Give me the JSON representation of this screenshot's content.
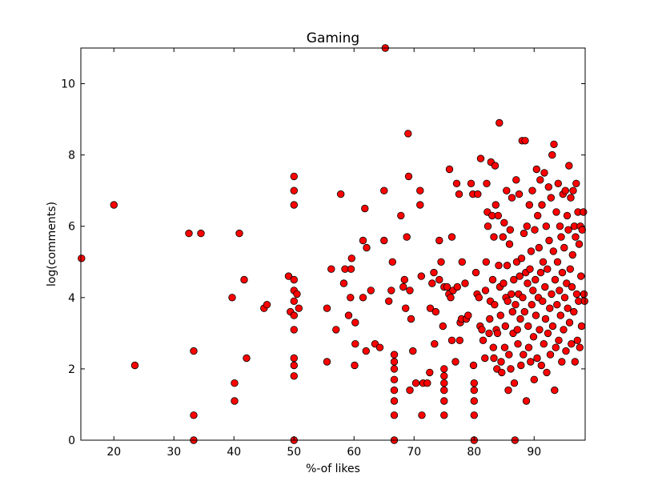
{
  "chart_data": {
    "type": "scatter",
    "title": "Gaming",
    "xlabel": "%-of likes",
    "ylabel": "log(comments)",
    "xlim": [
      14.5,
      98.5
    ],
    "ylim": [
      0,
      11
    ],
    "x_ticks": [
      20,
      30,
      40,
      50,
      60,
      70,
      80,
      90
    ],
    "y_ticks": [
      0,
      2,
      4,
      6,
      8,
      10
    ],
    "grid": false,
    "legend": "none",
    "marker_color": "#ff0000",
    "marker_edge_color": "#000000",
    "points": [
      [
        14.6,
        5.1
      ],
      [
        20,
        6.6
      ],
      [
        23.5,
        2.1
      ],
      [
        32.5,
        5.8
      ],
      [
        33.3,
        2.5
      ],
      [
        33.3,
        0.7
      ],
      [
        33.3,
        0.0
      ],
      [
        34.5,
        5.8
      ],
      [
        39.7,
        4.0
      ],
      [
        40.1,
        1.6
      ],
      [
        40.1,
        1.1
      ],
      [
        40.9,
        5.8
      ],
      [
        41.7,
        4.5
      ],
      [
        42.1,
        2.3
      ],
      [
        45,
        3.7
      ],
      [
        45.5,
        3.8
      ],
      [
        49.1,
        4.6
      ],
      [
        49.4,
        3.6
      ],
      [
        50,
        7.4
      ],
      [
        50,
        7.0
      ],
      [
        50,
        6.6
      ],
      [
        50,
        4.5
      ],
      [
        50,
        4.2
      ],
      [
        50,
        3.9
      ],
      [
        50,
        3.5
      ],
      [
        50,
        3.1
      ],
      [
        50,
        2.3
      ],
      [
        50,
        2.1
      ],
      [
        50,
        1.8
      ],
      [
        50,
        0.0
      ],
      [
        50.5,
        4.1
      ],
      [
        50.8,
        3.7
      ],
      [
        55.5,
        3.7
      ],
      [
        55.5,
        2.2
      ],
      [
        56.2,
        4.8
      ],
      [
        57,
        3.1
      ],
      [
        57.8,
        6.9
      ],
      [
        58.3,
        4.4
      ],
      [
        58.5,
        4.8
      ],
      [
        59.1,
        3.5
      ],
      [
        59.5,
        4.8
      ],
      [
        59.6,
        5.1
      ],
      [
        59.4,
        4.0
      ],
      [
        60.2,
        3.3
      ],
      [
        60.2,
        2.7
      ],
      [
        60.1,
        2.1
      ],
      [
        61.5,
        5.6
      ],
      [
        61.5,
        4.0
      ],
      [
        61.8,
        6.5
      ],
      [
        62,
        2.5
      ],
      [
        62.1,
        5.4
      ],
      [
        62.8,
        4.2
      ],
      [
        63.5,
        2.7
      ],
      [
        64.3,
        2.6
      ],
      [
        65,
        5.6
      ],
      [
        65,
        7.0
      ],
      [
        65.2,
        11.0
      ],
      [
        65.8,
        3.9
      ],
      [
        66.2,
        4.2
      ],
      [
        66.4,
        5.0
      ],
      [
        66.7,
        2.4
      ],
      [
        66.7,
        2.2
      ],
      [
        66.7,
        2.0
      ],
      [
        66.7,
        1.7
      ],
      [
        66.7,
        1.4
      ],
      [
        66.7,
        1.1
      ],
      [
        66.7,
        0.7
      ],
      [
        66.7,
        0.0
      ],
      [
        67.8,
        6.3
      ],
      [
        68.4,
        4.5
      ],
      [
        68.2,
        4.3
      ],
      [
        68.6,
        3.7
      ],
      [
        68.8,
        5.7
      ],
      [
        69.1,
        7.4
      ],
      [
        69,
        8.6
      ],
      [
        69.3,
        1.4
      ],
      [
        69.3,
        4.2
      ],
      [
        69.5,
        3.4
      ],
      [
        69.8,
        2.5
      ],
      [
        70.3,
        1.6
      ],
      [
        71,
        7.0
      ],
      [
        71,
        6.6
      ],
      [
        71.2,
        4.6
      ],
      [
        71.3,
        0.7
      ],
      [
        71.5,
        1.6
      ],
      [
        72.2,
        1.6
      ],
      [
        72.6,
        1.9
      ],
      [
        72.7,
        3.7
      ],
      [
        73,
        4.4
      ],
      [
        73.3,
        4.7
      ],
      [
        73.4,
        2.7
      ],
      [
        73.6,
        3.6
      ],
      [
        74.2,
        5.6
      ],
      [
        74.2,
        4.5
      ],
      [
        74.5,
        5.0
      ],
      [
        74.8,
        3.2
      ],
      [
        75,
        4.3
      ],
      [
        75,
        2.0
      ],
      [
        75,
        1.8
      ],
      [
        75,
        1.6
      ],
      [
        75,
        1.4
      ],
      [
        75,
        1.1
      ],
      [
        75,
        0.7
      ],
      [
        75.5,
        4.3
      ],
      [
        75.8,
        4.1
      ],
      [
        75.9,
        7.6
      ],
      [
        76.1,
        4.0
      ],
      [
        76.3,
        2.8
      ],
      [
        76.3,
        5.7
      ],
      [
        76.5,
        4.2
      ],
      [
        76.9,
        2.2
      ],
      [
        77.1,
        7.2
      ],
      [
        77.2,
        4.3
      ],
      [
        77.5,
        6.9
      ],
      [
        77.6,
        2.8
      ],
      [
        77.7,
        3.3
      ],
      [
        77.9,
        3.4
      ],
      [
        78,
        5.0
      ],
      [
        78.5,
        4.4
      ],
      [
        78.7,
        3.4
      ],
      [
        79,
        3.5
      ],
      [
        79.5,
        7.2
      ],
      [
        79.8,
        6.9
      ],
      [
        79.9,
        2.1
      ],
      [
        80,
        1.6
      ],
      [
        80,
        1.4
      ],
      [
        80,
        1.1
      ],
      [
        80,
        0.7
      ],
      [
        80,
        0.0
      ],
      [
        80.3,
        4.7
      ],
      [
        80.5,
        4.1
      ],
      [
        80.6,
        6.9
      ],
      [
        80.8,
        4.0
      ],
      [
        81,
        3.2
      ],
      [
        81.1,
        7.9
      ],
      [
        81.3,
        3.1
      ],
      [
        81.5,
        2.8
      ],
      [
        81.8,
        2.3
      ],
      [
        81.9,
        4.2
      ],
      [
        82,
        5.0
      ],
      [
        82.1,
        7.2
      ],
      [
        82.2,
        6.4
      ],
      [
        82.3,
        6.0
      ],
      [
        82.5,
        3.0
      ],
      [
        82.6,
        3.4
      ],
      [
        82.7,
        3.9
      ],
      [
        82.8,
        7.8
      ],
      [
        83,
        6.3
      ],
      [
        83.1,
        4.5
      ],
      [
        83.2,
        2.6
      ],
      [
        83.3,
        2.3
      ],
      [
        83.3,
        5.7
      ],
      [
        83.4,
        3.8
      ],
      [
        83.5,
        7.7
      ],
      [
        83.6,
        6.6
      ],
      [
        83.7,
        3.1
      ],
      [
        83.8,
        2.0
      ],
      [
        83.9,
        3.0
      ],
      [
        84,
        6.3
      ],
      [
        84.1,
        4.9
      ],
      [
        84.2,
        8.9
      ],
      [
        84.3,
        4.3
      ],
      [
        84.4,
        3.5
      ],
      [
        84.5,
        2.2
      ],
      [
        84.6,
        1.9
      ],
      [
        84.8,
        5.7
      ],
      [
        84.9,
        4.4
      ],
      [
        85,
        6.1
      ],
      [
        85.1,
        2.6
      ],
      [
        85.2,
        3.2
      ],
      [
        85.3,
        4.0
      ],
      [
        85.4,
        7.0
      ],
      [
        85.5,
        4.9
      ],
      [
        85.6,
        3.9
      ],
      [
        85.7,
        1.4
      ],
      [
        85.8,
        2.4
      ],
      [
        85.9,
        5.5
      ],
      [
        86,
        5.9
      ],
      [
        86.1,
        2.0
      ],
      [
        86.2,
        4.1
      ],
      [
        86.3,
        6.8
      ],
      [
        86.4,
        3.6
      ],
      [
        86.5,
        3.0
      ],
      [
        86.6,
        4.5
      ],
      [
        86.7,
        1.6
      ],
      [
        86.8,
        0.0
      ],
      [
        86.9,
        3.8
      ],
      [
        87,
        7.3
      ],
      [
        87.1,
        5.0
      ],
      [
        87.2,
        3.1
      ],
      [
        87.3,
        2.7
      ],
      [
        87.4,
        4.1
      ],
      [
        87.5,
        6.9
      ],
      [
        87.6,
        4.6
      ],
      [
        87.7,
        3.4
      ],
      [
        87.8,
        2.1
      ],
      [
        87.9,
        5.1
      ],
      [
        88,
        8.4
      ],
      [
        88.1,
        4.0
      ],
      [
        88.2,
        2.4
      ],
      [
        88.3,
        5.8
      ],
      [
        88.4,
        3.6
      ],
      [
        88.5,
        8.4
      ],
      [
        88.6,
        4.7
      ],
      [
        88.7,
        1.1
      ],
      [
        88.8,
        6.0
      ],
      [
        88.9,
        4.4
      ],
      [
        89,
        3.2
      ],
      [
        89.1,
        2.6
      ],
      [
        89.2,
        6.6
      ],
      [
        89.3,
        4.8
      ],
      [
        89.4,
        2.2
      ],
      [
        89.5,
        5.3
      ],
      [
        89.6,
        3.8
      ],
      [
        89.7,
        7.0
      ],
      [
        89.8,
        4.2
      ],
      [
        89.9,
        2.9
      ],
      [
        90,
        1.7
      ],
      [
        90.1,
        5.9
      ],
      [
        90.2,
        4.5
      ],
      [
        90.3,
        3.5
      ],
      [
        90.4,
        7.6
      ],
      [
        90.5,
        2.3
      ],
      [
        90.6,
        6.3
      ],
      [
        90.7,
        4.0
      ],
      [
        90.8,
        5.4
      ],
      [
        90.9,
        3.1
      ],
      [
        91,
        7.3
      ],
      [
        91.1,
        4.7
      ],
      [
        91.2,
        2.1
      ],
      [
        91.3,
        6.6
      ],
      [
        91.4,
        3.9
      ],
      [
        91.5,
        5.0
      ],
      [
        91.6,
        2.7
      ],
      [
        91.7,
        7.5
      ],
      [
        91.8,
        4.3
      ],
      [
        91.9,
        3.4
      ],
      [
        92,
        6.0
      ],
      [
        92.1,
        1.9
      ],
      [
        92.2,
        4.8
      ],
      [
        92.3,
        3.0
      ],
      [
        92.4,
        7.1
      ],
      [
        92.5,
        5.6
      ],
      [
        92.6,
        3.7
      ],
      [
        92.7,
        2.4
      ],
      [
        92.8,
        6.8
      ],
      [
        92.9,
        4.1
      ],
      [
        93,
        8.0
      ],
      [
        93.1,
        3.2
      ],
      [
        93.2,
        5.3
      ],
      [
        93.3,
        8.3
      ],
      [
        93.4,
        1.4
      ],
      [
        93.5,
        4.5
      ],
      [
        93.6,
        2.6
      ],
      [
        93.7,
        6.4
      ],
      [
        93.8,
        3.8
      ],
      [
        93.9,
        5.0
      ],
      [
        94,
        7.2
      ],
      [
        94.1,
        2.8
      ],
      [
        94.2,
        4.2
      ],
      [
        94.3,
        6.0
      ],
      [
        94.4,
        3.5
      ],
      [
        94.5,
        5.7
      ],
      [
        94.6,
        2.2
      ],
      [
        94.7,
        4.7
      ],
      [
        94.8,
        6.9
      ],
      [
        94.9,
        3.1
      ],
      [
        95,
        5.4
      ],
      [
        95.1,
        4.0
      ],
      [
        95.2,
        7.0
      ],
      [
        95.3,
        2.5
      ],
      [
        95.4,
        4.4
      ],
      [
        95.5,
        6.3
      ],
      [
        95.6,
        3.7
      ],
      [
        95.7,
        5.9
      ],
      [
        95.8,
        7.7
      ],
      [
        95.9,
        3.3
      ],
      [
        96,
        4.8
      ],
      [
        96.1,
        6.8
      ],
      [
        96.2,
        2.7
      ],
      [
        96.3,
        4.3
      ],
      [
        96.4,
        5.2
      ],
      [
        96.5,
        7.0
      ],
      [
        96.6,
        3.6
      ],
      [
        96.7,
        6.0
      ],
      [
        96.8,
        2.2
      ],
      [
        96.9,
        5.7
      ],
      [
        97,
        7.2
      ],
      [
        97.1,
        4.1
      ],
      [
        97.2,
        2.8
      ],
      [
        97.3,
        6.4
      ],
      [
        97.4,
        3.9
      ],
      [
        97.5,
        5.5
      ],
      [
        97.6,
        2.6
      ],
      [
        97.7,
        6.0
      ],
      [
        97.8,
        4.6
      ],
      [
        97.9,
        3.2
      ],
      [
        98,
        5.9
      ],
      [
        98.2,
        6.4
      ],
      [
        98.3,
        4.1
      ],
      [
        98.4,
        3.9
      ]
    ]
  }
}
